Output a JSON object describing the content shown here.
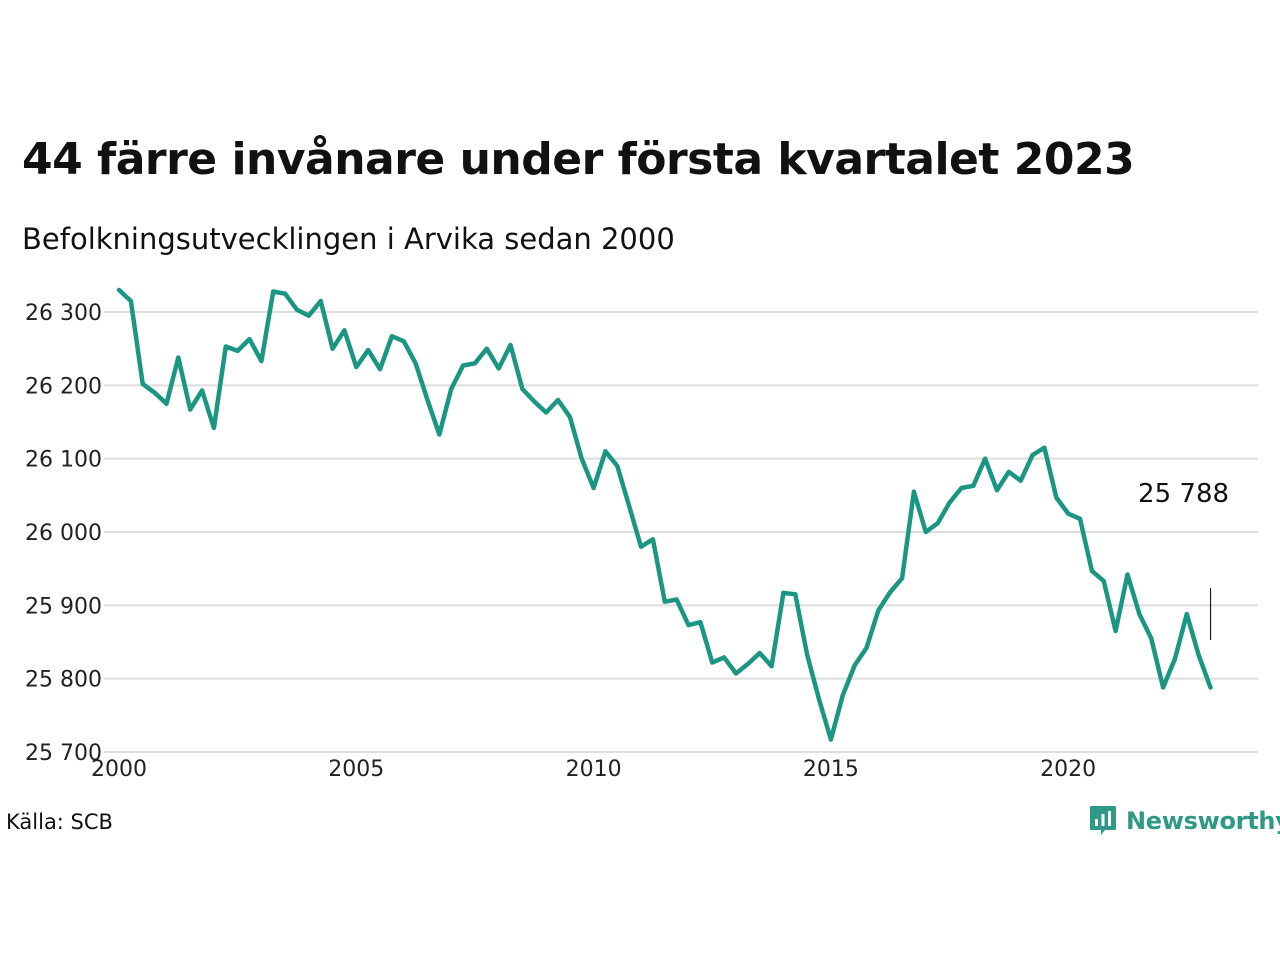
{
  "title": "44 färre invånare under första kvartalet 2023",
  "subtitle": "Befolkningsutvecklingen i Arvika sedan 2000",
  "source": "Källa: SCB",
  "brand": {
    "name": "Newsworthy",
    "icon": "newsworthy-logo-icon",
    "color": "#2e9a86"
  },
  "chart_data": {
    "type": "line",
    "title": "44 färre invånare under första kvartalet 2023",
    "subtitle": "Befolkningsutvecklingen i Arvika sedan 2000",
    "xlim": [
      2000,
      2024
    ],
    "ylim": [
      25700,
      26330
    ],
    "x_ticks": [
      2000,
      2005,
      2010,
      2015,
      2020
    ],
    "x_tick_labels": [
      "2000",
      "2005",
      "2010",
      "2015",
      "2020"
    ],
    "y_ticks": [
      25700,
      25800,
      25900,
      26000,
      26100,
      26200,
      26300
    ],
    "y_tick_labels": [
      "25 700",
      "25 800",
      "25 900",
      "26 000",
      "26 100",
      "26 200",
      "26 300"
    ],
    "grid": "horizontal",
    "line_color": "#1a9683",
    "annotation": {
      "text": "25 788",
      "x": 2023.0,
      "y": 25788
    },
    "series": [
      {
        "x": [
          2000.0,
          2000.25,
          2000.5,
          2000.75,
          2001.0,
          2001.25,
          2001.5,
          2001.75,
          2002.0,
          2002.25,
          2002.5,
          2002.75,
          2003.0,
          2003.25,
          2003.5,
          2003.75,
          2004.0,
          2004.25,
          2004.5,
          2004.75,
          2005.0,
          2005.25,
          2005.5,
          2005.75,
          2006.0,
          2006.25,
          2006.5,
          2006.75,
          2007.0,
          2007.25,
          2007.5,
          2007.75,
          2008.0,
          2008.25,
          2008.5,
          2008.75,
          2009.0,
          2009.25,
          2009.5,
          2009.75,
          2010.0,
          2010.25,
          2010.5,
          2010.75,
          2011.0,
          2011.25,
          2011.5,
          2011.75,
          2012.0,
          2012.25,
          2012.5,
          2012.75,
          2013.0,
          2013.25,
          2013.5,
          2013.75,
          2014.0,
          2014.25,
          2014.5,
          2014.75,
          2015.0,
          2015.25,
          2015.5,
          2015.75,
          2016.0,
          2016.25,
          2016.5,
          2016.75,
          2017.0,
          2017.25,
          2017.5,
          2017.75,
          2018.0,
          2018.25,
          2018.5,
          2018.75,
          2019.0,
          2019.25,
          2019.5,
          2019.75,
          2020.0,
          2020.25,
          2020.5,
          2020.75,
          2021.0,
          2021.25,
          2021.5,
          2021.75,
          2022.0,
          2022.25,
          2022.5,
          2022.75,
          2023.0
        ],
        "values": [
          26330,
          26315,
          26202,
          26190,
          26175,
          26238,
          26167,
          26193,
          26142,
          26253,
          26247,
          26263,
          26233,
          26328,
          26325,
          26303,
          26295,
          26315,
          26250,
          26275,
          26225,
          26248,
          26222,
          26267,
          26260,
          26230,
          26180,
          26133,
          26195,
          26227,
          26230,
          26250,
          26223,
          26255,
          26195,
          26178,
          26163,
          26180,
          26157,
          26100,
          26060,
          26110,
          26090,
          26035,
          25980,
          25990,
          25905,
          25908,
          25873,
          25877,
          25822,
          25829,
          25807,
          25820,
          25835,
          25817,
          25917,
          25915,
          25833,
          25772,
          25717,
          25777,
          25818,
          25842,
          25893,
          25918,
          25937,
          26055,
          26000,
          26012,
          26040,
          26060,
          26063,
          26100,
          26057,
          26082,
          26070,
          26105,
          26115,
          26047,
          26025,
          26018,
          25947,
          25933,
          25865,
          25942,
          25888,
          25855,
          25788,
          25827,
          25888,
          25832,
          25788
        ]
      }
    ]
  }
}
